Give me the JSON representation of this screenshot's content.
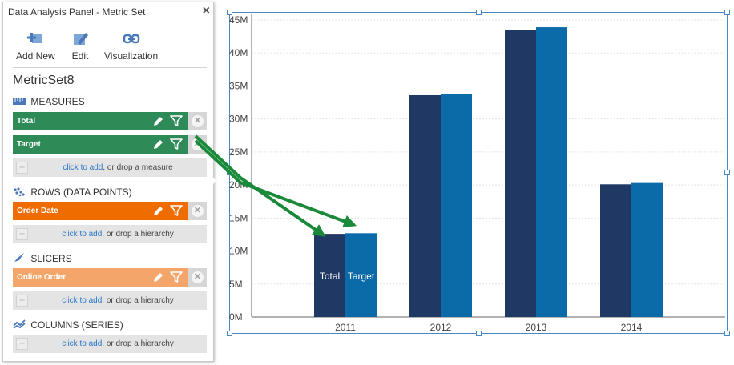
{
  "panel": {
    "title": "Data Analysis Panel - Metric Set",
    "close_label": "×",
    "toolbar": {
      "add_new": "Add New",
      "edit": "Edit",
      "visualization": "Visualization"
    },
    "metric_set_name": "MetricSet8",
    "sections": {
      "measures": "MEASURES",
      "rows": "ROWS (DATA POINTS)",
      "slicers": "SLICERS",
      "columns": "COLUMNS (SERIES)"
    },
    "measures": [
      {
        "label": "Total",
        "color": "#2e8b57"
      },
      {
        "label": "Target",
        "color": "#2e8b57"
      }
    ],
    "rows": [
      {
        "label": "Order Date",
        "color": "#ef6c00"
      }
    ],
    "slicers": [
      {
        "label": "Online Order",
        "color": "#f4a66a"
      }
    ],
    "dropzones": {
      "measure": {
        "link": "click to add",
        "rest": ", or drop a measure"
      },
      "rows": {
        "link": "click to add",
        "rest": ", or drop a hierarchy"
      },
      "slicers": {
        "link": "click to add",
        "rest": ", or drop a hierarchy"
      },
      "columns": {
        "link": "click to add",
        "rest": ", or drop a hierarchy"
      }
    },
    "icons": {
      "add_new": "add-new-icon",
      "edit": "edit-icon",
      "visualization": "visualization-icon",
      "pencil": "pencil-icon",
      "filter": "filter-icon",
      "remove": "remove-icon"
    }
  },
  "chart_data": {
    "type": "bar",
    "categories": [
      "2011",
      "2012",
      "2013",
      "2014"
    ],
    "series": [
      {
        "name": "Total",
        "values": [
          12.6,
          33.6,
          43.5,
          20.1
        ],
        "color": "#1f3864"
      },
      {
        "name": "Target",
        "values": [
          12.7,
          33.8,
          43.9,
          20.3
        ],
        "color": "#0b6aa8"
      }
    ],
    "y_tick_labels": [
      "0M",
      "5M",
      "10M",
      "15M",
      "20M",
      "25M",
      "30M",
      "35M",
      "40M",
      "45M"
    ],
    "ylim": [
      0,
      45
    ],
    "grid": true,
    "data_labels_on": "2011"
  },
  "annotation": {
    "arrow_color": "#1a8a3a"
  }
}
